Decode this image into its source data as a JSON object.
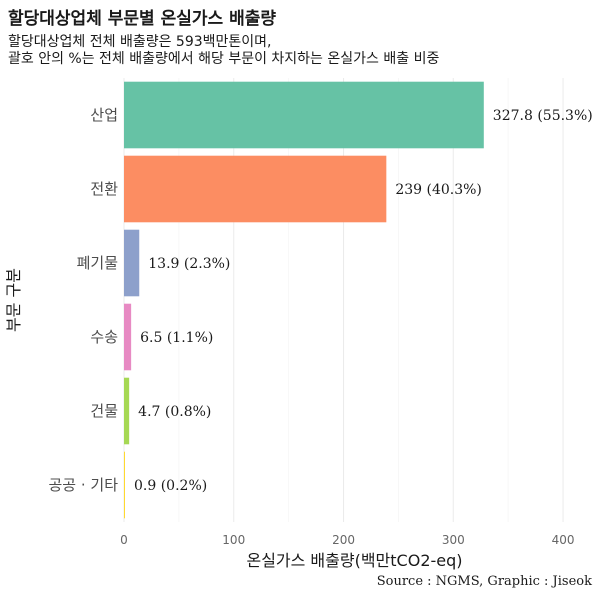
{
  "title": "할당대상업체 부문별 온실가스 배출량",
  "subtitle_lines": [
    "할당대상업체 전체 배출량은 593백만톤이며,",
    "괄호 안의 %는 전체 배출량에서 해당 부문이 차지하는 온실가스 배출 비중"
  ],
  "caption": "Source : NGMS, Graphic : Jiseok",
  "chart_data": {
    "type": "bar",
    "orientation": "horizontal",
    "categories": [
      "산업",
      "전환",
      "폐기물",
      "수송",
      "건물",
      "공공 · 기타"
    ],
    "values": [
      327.8,
      239,
      13.9,
      6.5,
      4.7,
      0.9
    ],
    "value_labels": [
      "327.8 (55.3%)",
      "239 (40.3%)",
      "13.9 (2.3%)",
      "6.5 (1.1%)",
      "4.7 (0.8%)",
      "0.9 (0.2%)"
    ],
    "colors": [
      "#66c2a5",
      "#fc8d62",
      "#8da0cb",
      "#e78ac3",
      "#a6d854",
      "#ffd92f"
    ],
    "xlabel": "온실가스 배출량(백만tCO2-eq)",
    "ylabel": "부문 구분",
    "xlim": [
      0,
      420
    ],
    "xticks": [
      0,
      100,
      200,
      300,
      400
    ],
    "grid": true
  }
}
